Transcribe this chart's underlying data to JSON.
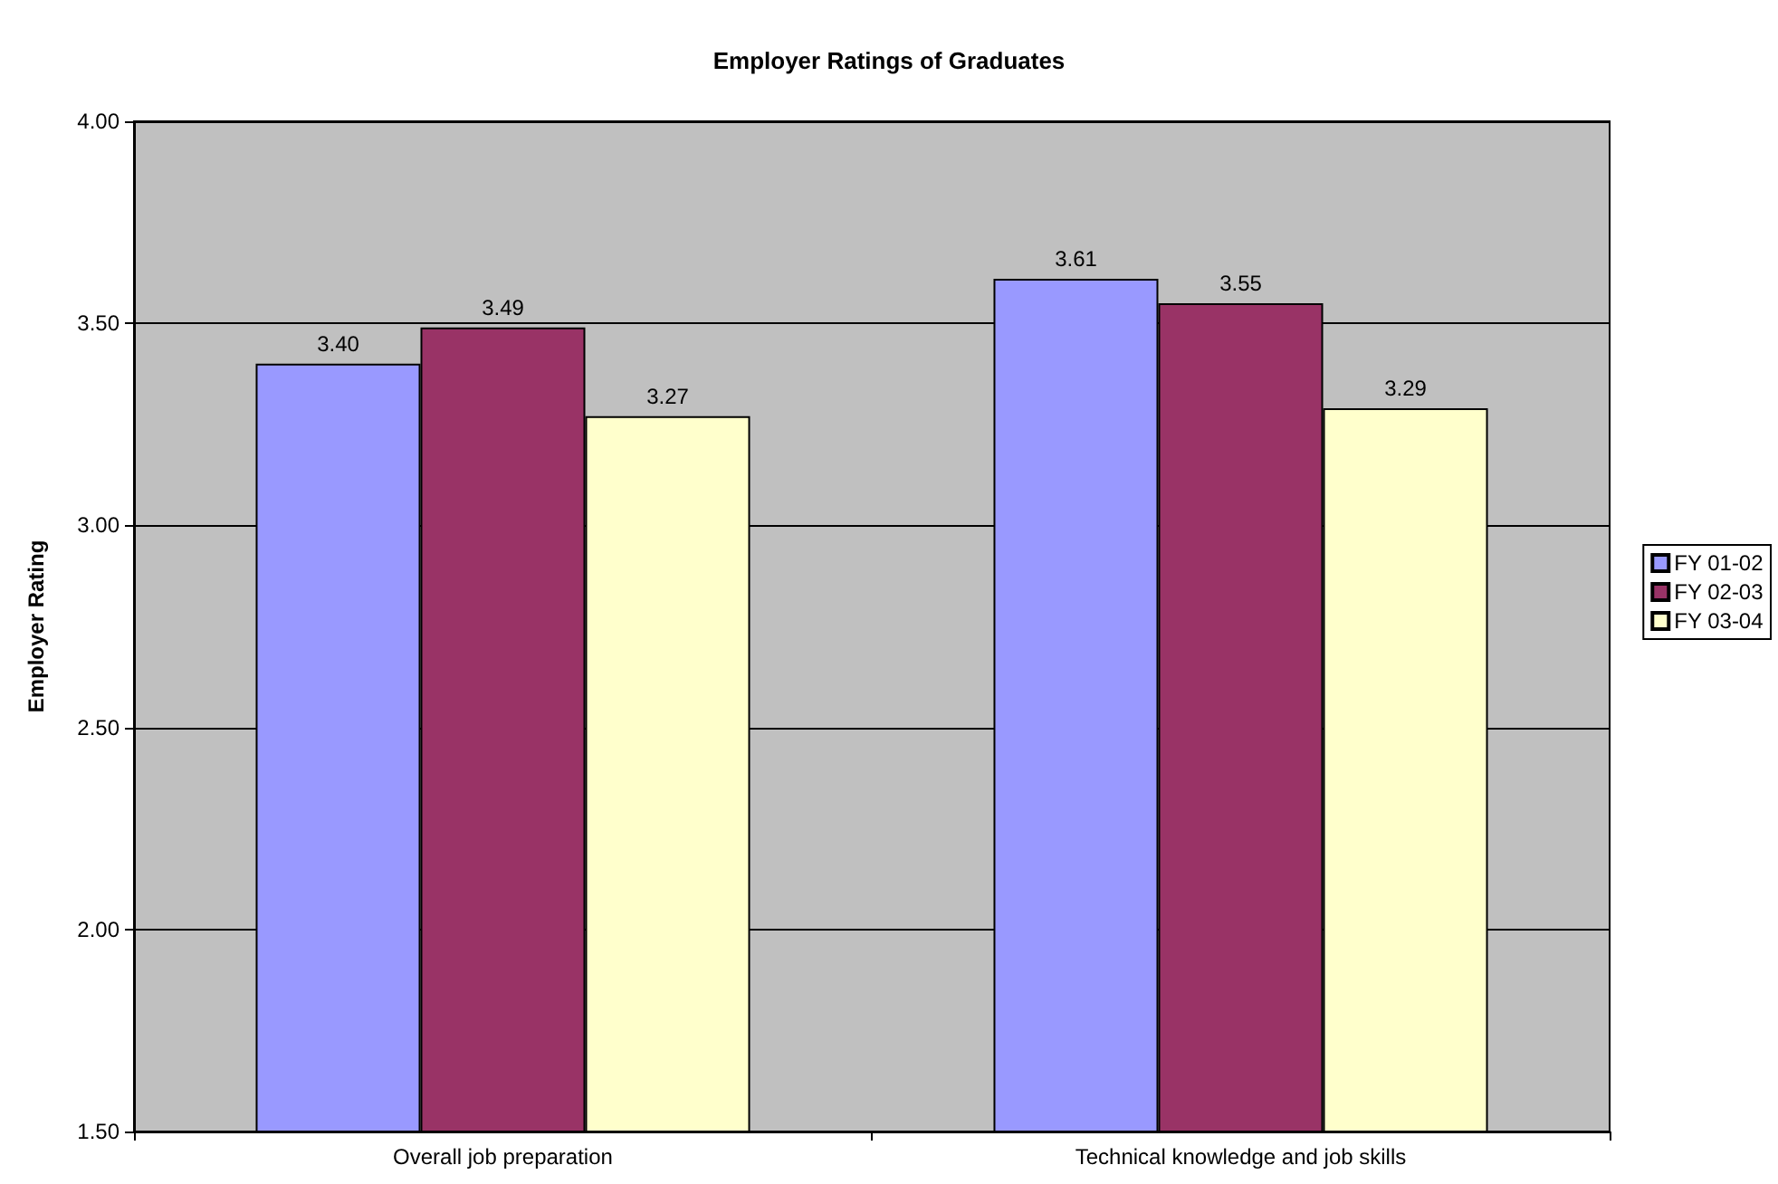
{
  "chart_data": {
    "type": "bar",
    "title": "Employer Ratings of Graduates",
    "ylabel": "Employer Rating",
    "categories": [
      "Overall job preparation",
      "Technical knowledge and job skills"
    ],
    "series": [
      {
        "name": "FY 01-02",
        "color": "#9999ff",
        "values": [
          3.4,
          3.61
        ],
        "value_labels": [
          "3.40",
          "3.61"
        ]
      },
      {
        "name": "FY 02-03",
        "color": "#993366",
        "values": [
          3.49,
          3.55
        ],
        "value_labels": [
          "3.49",
          "3.55"
        ]
      },
      {
        "name": "FY 03-04",
        "color": "#ffffcc",
        "values": [
          3.27,
          3.29
        ],
        "value_labels": [
          "3.27",
          "3.29"
        ]
      }
    ],
    "ylim": [
      1.5,
      4
    ],
    "yticks": [
      {
        "value": 1.5,
        "label": "1.50"
      },
      {
        "value": 2,
        "label": "2.00"
      },
      {
        "value": 2.5,
        "label": "2.50"
      },
      {
        "value": 3,
        "label": "3.00"
      },
      {
        "value": 3.5,
        "label": "3.50"
      },
      {
        "value": 4,
        "label": "4.00"
      }
    ],
    "grid": "y",
    "legend": "right"
  }
}
